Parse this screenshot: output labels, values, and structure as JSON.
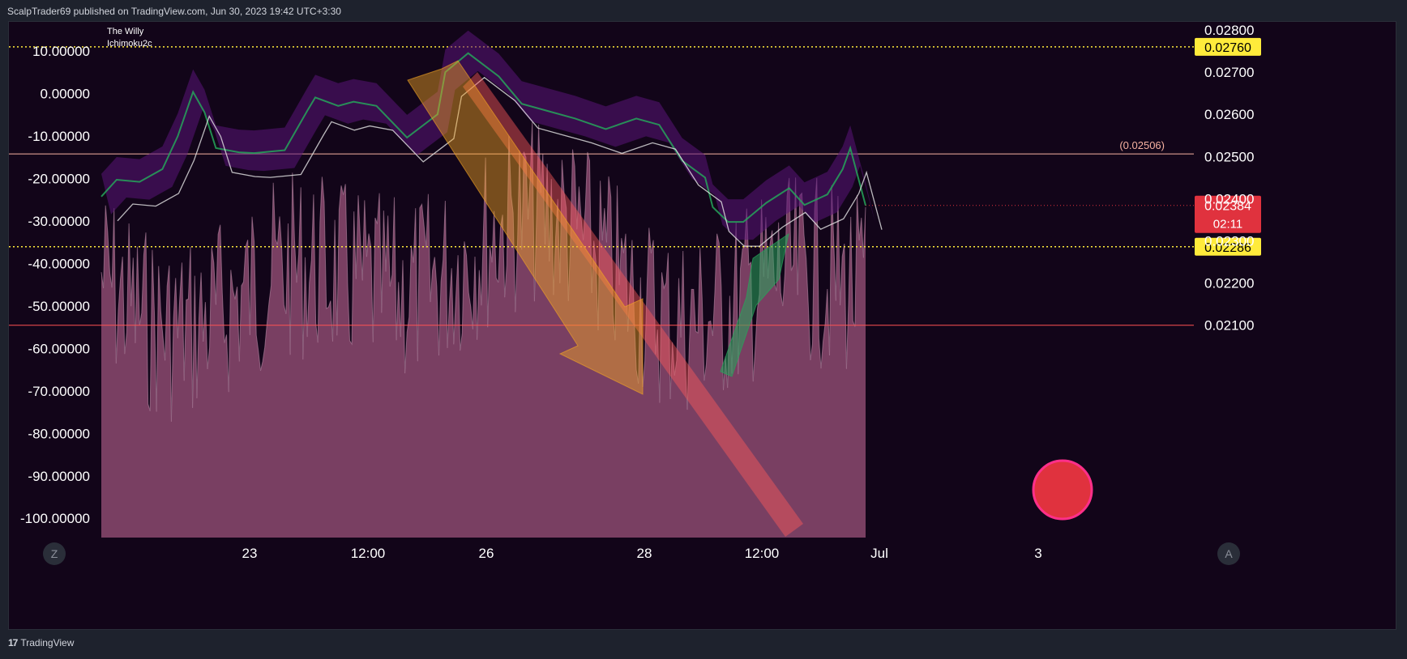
{
  "header": {
    "attribution": "ScalpTrader69 published on TradingView.com, Jun 30, 2023 19:42 UTC+3:30"
  },
  "footer": {
    "brand": "TradingView",
    "brand_mark": "17"
  },
  "colors": {
    "background": "#120519",
    "oscillator_fill": "#8c4a70",
    "yellow_level": "#ffeb3b",
    "red_level": "#ff5252",
    "orange_level": "#f7b2a1",
    "price_label_red": "#e0323e",
    "arrow_orange": "#f5a623",
    "arrow_green": "#26a65b",
    "circle": "#e0323e"
  },
  "legend": {
    "line1": "The Willy",
    "line2": "Ichimoku2c"
  },
  "buttons": {
    "zoom_left": "Z",
    "auto_right": "A"
  },
  "chart_data": [
    {
      "type": "area",
      "name": "The Willy",
      "axis": "left",
      "ylim": [
        -104,
        13
      ],
      "yticks": [
        "10.00000",
        "0.00000",
        "-10.00000",
        "-20.00000",
        "-30.00000",
        "-40.00000",
        "-50.00000",
        "-60.00000",
        "-70.00000",
        "-80.00000",
        "-90.00000",
        "-100.00000"
      ],
      "ytick_values": [
        10,
        0,
        -10,
        -20,
        -30,
        -40,
        -50,
        -60,
        -70,
        -80,
        -90,
        -100
      ]
    },
    {
      "type": "line",
      "name": "Ichimoku2c",
      "axis": "right",
      "ylim": [
        0.0204,
        0.0282
      ],
      "yticks": [
        "0.02800",
        "0.02700",
        "0.02600",
        "0.02500",
        "0.02400",
        "0.02300",
        "0.02200",
        "0.02100"
      ],
      "ytick_values": [
        0.028,
        0.027,
        0.026,
        0.025,
        0.024,
        0.023,
        0.022,
        0.021
      ],
      "xticks": [
        "23",
        "12:00",
        "26",
        "28",
        "12:00",
        "Jul",
        "3"
      ],
      "price_series": {
        "x": [
          0,
          0.02,
          0.05,
          0.08,
          0.1,
          0.12,
          0.135,
          0.15,
          0.18,
          0.2,
          0.24,
          0.27,
          0.28,
          0.31,
          0.33,
          0.36,
          0.4,
          0.44,
          0.45,
          0.48,
          0.52,
          0.55,
          0.58,
          0.62,
          0.66,
          0.7,
          0.73,
          0.76,
          0.79,
          0.8,
          0.82,
          0.84,
          0.87,
          0.9,
          0.92,
          0.95,
          0.97,
          0.98,
          1.0
        ],
        "y": [
          0.02405,
          0.02445,
          0.0244,
          0.0247,
          0.02548,
          0.02653,
          0.02605,
          0.0252,
          0.0251,
          0.02508,
          0.02515,
          0.0261,
          0.0264,
          0.0262,
          0.0263,
          0.0262,
          0.02545,
          0.026,
          0.027,
          0.02745,
          0.0269,
          0.02625,
          0.0261,
          0.0259,
          0.02565,
          0.0259,
          0.02575,
          0.0249,
          0.0245,
          0.0238,
          0.02345,
          0.02345,
          0.0239,
          0.02425,
          0.02385,
          0.0241,
          0.0247,
          0.0252,
          0.02384
        ]
      },
      "levels": [
        {
          "value": 0.0276,
          "label": "0.02760",
          "style": "dotted",
          "color": "yellow"
        },
        {
          "value": 0.02506,
          "label": "(0.02506)",
          "style": "solid",
          "color": "orange"
        },
        {
          "value": 0.02286,
          "label": "0.02286",
          "style": "dotted",
          "color": "yellow"
        },
        {
          "value": 0.021,
          "label": "",
          "style": "solid",
          "color": "red"
        }
      ],
      "last_price": {
        "value": 0.02384,
        "label": "0.02384",
        "countdown": "02:11"
      }
    }
  ]
}
